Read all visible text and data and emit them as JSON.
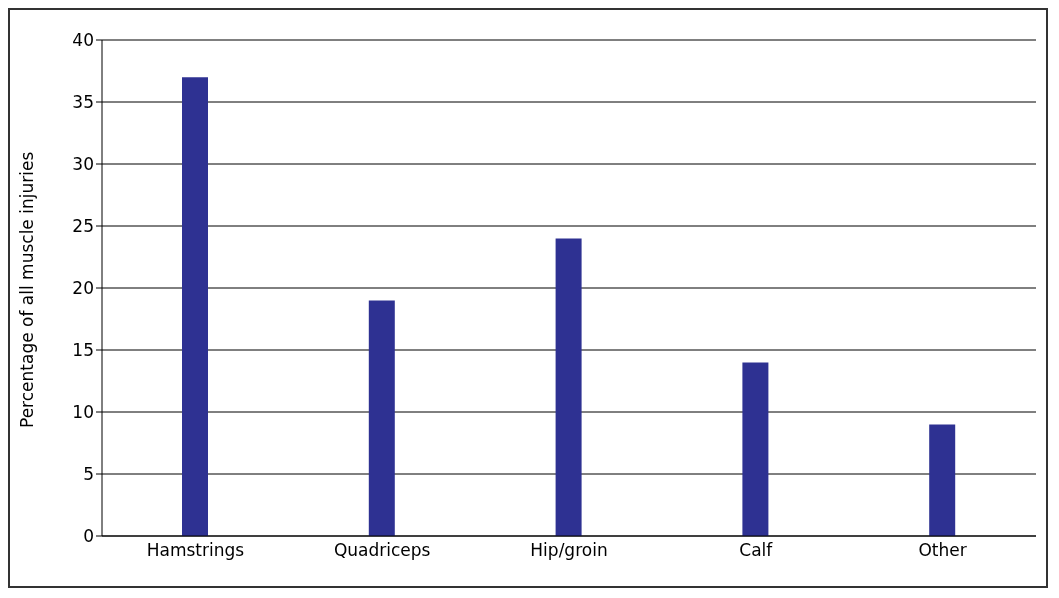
{
  "chart_data": {
    "type": "bar",
    "ylabel": "Percentage of all muscle injuries",
    "categories": [
      "Hamstrings",
      "Quadriceps",
      "Hip/groin",
      "Calf",
      "Other"
    ],
    "values": [
      37,
      19,
      24,
      14,
      9
    ],
    "color": "#2e3192",
    "ylim": [
      0,
      40
    ],
    "yticks": [
      0,
      5,
      10,
      15,
      20,
      25,
      30,
      35,
      40
    ],
    "grid": "y"
  }
}
